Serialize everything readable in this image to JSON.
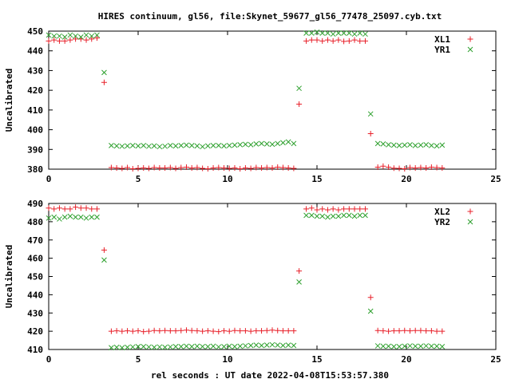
{
  "title": "HIRES continuum, gl56, file:Skynet_59677_gl56_77478_25097.cyb.txt",
  "xlabel": "rel seconds : UT date 2022-04-08T15:53:57.380",
  "colors": {
    "xl": "#e8202a",
    "yr": "#2ea02e"
  },
  "chart_data": [
    {
      "type": "scatter",
      "ylabel": "Uncalibrated",
      "xlim": [
        0,
        25
      ],
      "ylim": [
        380,
        450
      ],
      "xticks": [
        0,
        5,
        10,
        15,
        20,
        25
      ],
      "yticks": [
        380,
        390,
        400,
        410,
        420,
        430,
        440,
        450
      ],
      "legend_position": "top-right",
      "series": [
        {
          "name": "XL1",
          "marker": "plus",
          "x": [
            0.0,
            0.3,
            0.6,
            0.9,
            1.2,
            1.5,
            1.8,
            2.1,
            2.4,
            2.7,
            3.1,
            3.5,
            3.8,
            4.1,
            4.4,
            4.7,
            5.0,
            5.3,
            5.6,
            5.9,
            6.2,
            6.5,
            6.8,
            7.1,
            7.4,
            7.7,
            8.0,
            8.3,
            8.6,
            8.9,
            9.2,
            9.5,
            9.8,
            10.1,
            10.4,
            10.7,
            11.0,
            11.3,
            11.6,
            11.9,
            12.2,
            12.5,
            12.8,
            13.1,
            13.4,
            13.7,
            14.0,
            14.4,
            14.7,
            15.0,
            15.3,
            15.6,
            15.9,
            16.2,
            16.5,
            16.8,
            17.1,
            17.4,
            17.7,
            18.0,
            18.4,
            18.7,
            19.0,
            19.3,
            19.6,
            19.9,
            20.2,
            20.5,
            20.8,
            21.1,
            21.4,
            21.7,
            22.0
          ],
          "y": [
            445,
            445.5,
            445,
            445,
            445.5,
            446,
            446,
            445.5,
            446,
            446.5,
            424,
            380.8,
            380.6,
            380.4,
            380.8,
            380.2,
            380.4,
            380.6,
            380.4,
            380.8,
            380.6,
            380.6,
            380.8,
            380.4,
            380.8,
            381,
            380.6,
            380.8,
            380.4,
            380.2,
            380.6,
            380.8,
            380.6,
            380.4,
            380.6,
            380.2,
            380.6,
            380.4,
            380.8,
            380.6,
            380.8,
            380.6,
            381,
            380.8,
            380.6,
            380.4,
            413,
            445,
            445.5,
            445.5,
            445,
            445.5,
            445,
            445.5,
            444.8,
            445,
            445.5,
            445,
            445,
            398,
            381,
            381.5,
            381,
            380.5,
            380.4,
            380.2,
            380.8,
            380.6,
            380.8,
            380.6,
            381,
            380.8,
            380.6
          ]
        },
        {
          "name": "YR1",
          "marker": "cross",
          "x": [
            0.0,
            0.3,
            0.6,
            0.9,
            1.2,
            1.5,
            1.8,
            2.1,
            2.4,
            2.7,
            3.1,
            3.5,
            3.8,
            4.1,
            4.4,
            4.7,
            5.0,
            5.3,
            5.6,
            5.9,
            6.2,
            6.5,
            6.8,
            7.1,
            7.4,
            7.7,
            8.0,
            8.3,
            8.6,
            8.9,
            9.2,
            9.5,
            9.8,
            10.1,
            10.4,
            10.7,
            11.0,
            11.3,
            11.6,
            11.9,
            12.2,
            12.5,
            12.8,
            13.1,
            13.4,
            13.7,
            14.0,
            14.4,
            14.7,
            15.0,
            15.3,
            15.6,
            15.9,
            16.2,
            16.5,
            16.8,
            17.1,
            17.4,
            17.7,
            18.0,
            18.4,
            18.7,
            19.0,
            19.3,
            19.6,
            19.9,
            20.2,
            20.5,
            20.8,
            21.1,
            21.4,
            21.7,
            22.0
          ],
          "y": [
            448,
            447.5,
            447.5,
            447,
            448,
            447.5,
            447,
            448,
            447.5,
            448,
            429,
            392,
            391.8,
            391.6,
            391.8,
            392,
            391.8,
            392,
            391.6,
            391.8,
            391.4,
            391.6,
            392,
            391.8,
            392,
            392.2,
            392,
            391.8,
            391.4,
            391.8,
            392,
            392,
            391.8,
            392,
            392.2,
            392.4,
            392.6,
            392.4,
            392.8,
            393,
            392.8,
            392.6,
            393,
            393.4,
            393.8,
            393,
            421,
            449,
            449,
            449.5,
            449,
            449,
            448.5,
            449,
            449,
            449,
            448.5,
            449,
            448.5,
            408,
            393,
            392.8,
            392.4,
            392.2,
            392,
            392.2,
            392.4,
            392,
            392.2,
            392.4,
            392,
            391.8,
            392.2
          ]
        }
      ]
    },
    {
      "type": "scatter",
      "ylabel": "Uncalibrated",
      "xlim": [
        0,
        25
      ],
      "ylim": [
        410,
        490
      ],
      "xticks": [
        0,
        5,
        10,
        15,
        20,
        25
      ],
      "yticks": [
        410,
        420,
        430,
        440,
        450,
        460,
        470,
        480,
        490
      ],
      "legend_position": "top-right",
      "series": [
        {
          "name": "XL2",
          "marker": "plus",
          "x": [
            0.0,
            0.3,
            0.6,
            0.9,
            1.2,
            1.5,
            1.8,
            2.1,
            2.4,
            2.7,
            3.1,
            3.5,
            3.8,
            4.1,
            4.4,
            4.7,
            5.0,
            5.3,
            5.6,
            5.9,
            6.2,
            6.5,
            6.8,
            7.1,
            7.4,
            7.7,
            8.0,
            8.3,
            8.6,
            8.9,
            9.2,
            9.5,
            9.8,
            10.1,
            10.4,
            10.7,
            11.0,
            11.3,
            11.6,
            11.9,
            12.2,
            12.5,
            12.8,
            13.1,
            13.4,
            13.7,
            14.0,
            14.4,
            14.7,
            15.0,
            15.3,
            15.6,
            15.9,
            16.2,
            16.5,
            16.8,
            17.1,
            17.4,
            17.7,
            18.0,
            18.4,
            18.7,
            19.0,
            19.3,
            19.6,
            19.9,
            20.2,
            20.5,
            20.8,
            21.1,
            21.4,
            21.7,
            22.0
          ],
          "y": [
            487.5,
            487,
            487.5,
            487,
            487,
            488,
            487.5,
            487.5,
            487,
            487,
            464.5,
            420,
            420.2,
            420,
            420.2,
            420,
            420.2,
            419.8,
            420,
            420.4,
            420.2,
            420.4,
            420.2,
            420.2,
            420.4,
            420.6,
            420.4,
            420.2,
            420,
            420.2,
            420,
            419.8,
            420.2,
            420,
            420.4,
            420.2,
            420.2,
            420,
            420.2,
            420.2,
            420.4,
            420.6,
            420.4,
            420.2,
            420.2,
            420.2,
            453,
            487,
            487.5,
            486.5,
            487,
            486.5,
            487,
            486.5,
            487,
            487,
            487,
            487,
            487,
            438.5,
            420.4,
            420.2,
            420,
            420.2,
            420.2,
            420.4,
            420.2,
            420.4,
            420.4,
            420.2,
            420.2,
            420,
            420
          ]
        },
        {
          "name": "YR2",
          "marker": "cross",
          "x": [
            0.0,
            0.3,
            0.6,
            0.9,
            1.2,
            1.5,
            1.8,
            2.1,
            2.4,
            2.7,
            3.1,
            3.5,
            3.8,
            4.1,
            4.4,
            4.7,
            5.0,
            5.3,
            5.6,
            5.9,
            6.2,
            6.5,
            6.8,
            7.1,
            7.4,
            7.7,
            8.0,
            8.3,
            8.6,
            8.9,
            9.2,
            9.5,
            9.8,
            10.1,
            10.4,
            10.7,
            11.0,
            11.3,
            11.6,
            11.9,
            12.2,
            12.5,
            12.8,
            13.1,
            13.4,
            13.7,
            14.0,
            14.4,
            14.7,
            15.0,
            15.3,
            15.6,
            15.9,
            16.2,
            16.5,
            16.8,
            17.1,
            17.4,
            17.7,
            18.0,
            18.4,
            18.7,
            19.0,
            19.3,
            19.6,
            19.9,
            20.2,
            20.5,
            20.8,
            21.1,
            21.4,
            21.7,
            22.0
          ],
          "y": [
            482,
            482.5,
            481.5,
            482.5,
            483,
            482.5,
            482.5,
            482,
            482.5,
            482.5,
            459,
            411,
            411.2,
            411,
            411.2,
            411.4,
            411.6,
            411.6,
            411.4,
            411.2,
            411.4,
            411.2,
            411.4,
            411.6,
            411.6,
            411.8,
            411.6,
            411.8,
            411.6,
            411.6,
            411.8,
            411.4,
            411.6,
            411.8,
            411.6,
            411.8,
            412,
            412.2,
            412.4,
            412.2,
            412.4,
            412.6,
            412.4,
            412.2,
            412.4,
            412.2,
            447,
            483.5,
            483.5,
            483,
            483,
            482.5,
            483,
            483,
            483.5,
            483.5,
            483,
            483.5,
            483.5,
            431,
            412,
            411.8,
            411.8,
            411.6,
            411.6,
            411.8,
            412,
            411.8,
            411.8,
            412,
            411.8,
            411.8,
            411.6
          ]
        }
      ]
    }
  ]
}
